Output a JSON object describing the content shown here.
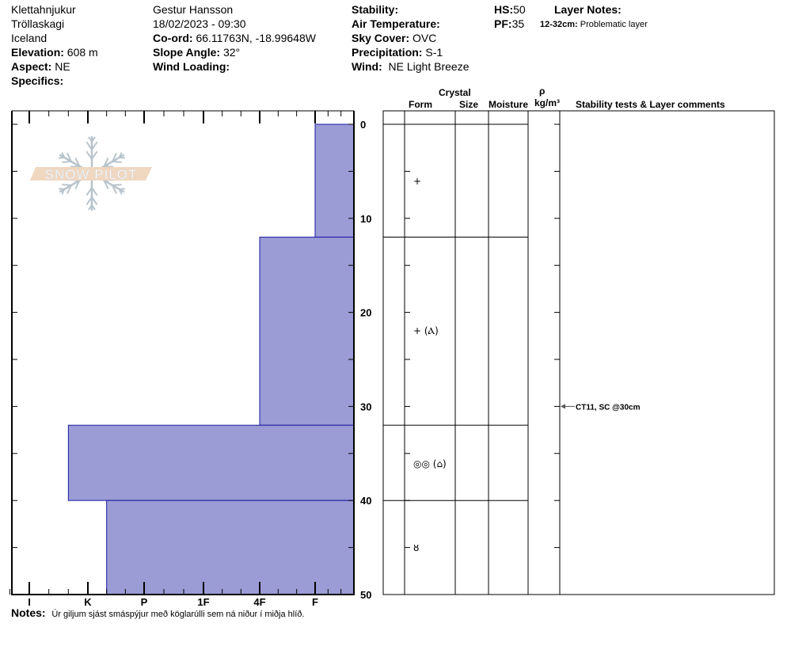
{
  "location": {
    "name": "Klettahnjukur",
    "region": "Tröllaskagi",
    "country": "Iceland",
    "elevation_label": "Elevation:",
    "elevation": "608 m",
    "aspect_label": "Aspect:",
    "aspect": "NE",
    "specifics_label": "Specifics:"
  },
  "observer": {
    "name": "Gestur Hansson",
    "datetime": "18/02/2023 - 09:30",
    "coord_label": "Co-ord:",
    "coord": "66.11763N, -18.99648W",
    "slope_label": "Slope Angle:",
    "slope": "32°",
    "wind_loading_label": "Wind Loading:"
  },
  "conditions": {
    "stability_label": "Stability:",
    "air_temp_label": "Air Temperature:",
    "sky_label": "Sky Cover:",
    "sky": "OVC",
    "precip_label": "Precipitation:",
    "precip": "S-1",
    "wind_label": "Wind:",
    "wind": "NE Light Breeze"
  },
  "depths": {
    "hs_label": "HS:",
    "hs": "50",
    "pf_label": "PF:",
    "pf": "35"
  },
  "layer_notes": {
    "title": "Layer Notes:",
    "range": "12-32cm:",
    "text": "Problematic layer"
  },
  "table_headers": {
    "crystal": "Crystal",
    "form": "Form",
    "size": "Size",
    "moisture": "Moisture",
    "rho": "ρ",
    "density": "kg/m³",
    "comments": "Stability tests & Layer comments"
  },
  "hardness_axis": [
    "I",
    "K",
    "P",
    "1F",
    "4F",
    "F"
  ],
  "depth_axis": [
    "0",
    "10",
    "20",
    "30",
    "40",
    "50"
  ],
  "layers": [
    {
      "top": 0,
      "bottom": 12,
      "hardness": "F",
      "form": "+"
    },
    {
      "top": 12,
      "bottom": 32,
      "hardness": "4F",
      "form": "+ (Ⲁ)"
    },
    {
      "top": 32,
      "bottom": 40,
      "hardness": "K+",
      "form": "◎◎ (⌂)"
    },
    {
      "top": 40,
      "bottom": 50,
      "hardness": "K-",
      "form": "ȣ"
    }
  ],
  "stability_tests": [
    {
      "depth": 30,
      "text": "CT11, SC @30cm"
    }
  ],
  "notes": {
    "label": "Notes:",
    "text": "Úr giljum sjást smáspýjur með köglarúlli sem ná niður í miðja hlíð."
  },
  "logo": {
    "text": "SNOW PILOT"
  },
  "colors": {
    "hardness_fill": "#9b9bd6",
    "hardness_edge": "#1a1aa0",
    "logo_band": "#f0d7c0",
    "logo_flake": "#b8c4cc"
  }
}
